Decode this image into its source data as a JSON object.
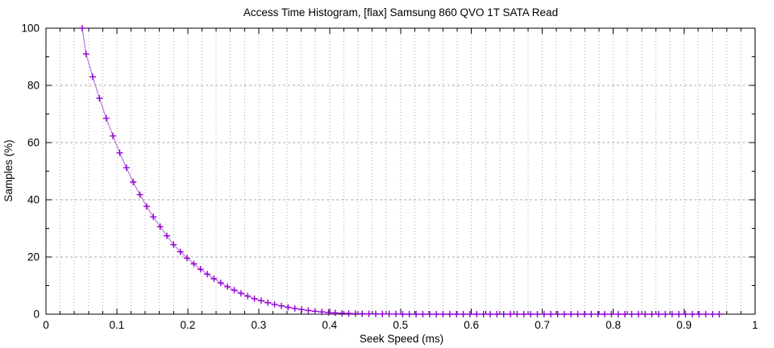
{
  "page": {
    "background": "#ffffff"
  },
  "chart_data": {
    "type": "line",
    "title": "Access Time Histogram, [flax] Samsung 860 QVO 1T SATA Read",
    "xlabel": "Seek Speed (ms)",
    "ylabel": "Samples (%)",
    "xlim": [
      0,
      1
    ],
    "ylim": [
      0,
      100
    ],
    "x_major_ticks": [
      0,
      0.1,
      0.2,
      0.3,
      0.4,
      0.5,
      0.6,
      0.7,
      0.8,
      0.9,
      1
    ],
    "x_major_labels": [
      "0",
      "0.1",
      "0.2",
      "0.3",
      "0.4",
      "0.5",
      "0.6",
      "0.7",
      "0.8",
      "0.9",
      "1"
    ],
    "x_minor_step": 0.02,
    "y_major_ticks": [
      0,
      20,
      40,
      60,
      80,
      100
    ],
    "y_major_labels": [
      "0",
      "20",
      "40",
      "60",
      "80",
      "100"
    ],
    "y_minor_step": 10,
    "grid_vertical_step": 0.02,
    "grid_horizontal_at": [
      20,
      40,
      60,
      80
    ],
    "legend_position": "none",
    "marker_style": "plus",
    "colors": {
      "line": "#b878dd",
      "marker": "#9400d3",
      "grid": "#ababab",
      "axis": "#000000",
      "text": "#000000"
    },
    "series": [
      {
        "points": [
          [
            0.051,
            100.0
          ],
          [
            0.0565,
            91.0
          ],
          [
            0.066,
            83.0
          ],
          [
            0.0755,
            75.5
          ],
          [
            0.085,
            68.5
          ],
          [
            0.0945,
            62.3
          ],
          [
            0.104,
            56.4
          ],
          [
            0.1135,
            51.2
          ],
          [
            0.123,
            46.2
          ],
          [
            0.1325,
            41.8
          ],
          [
            0.142,
            37.7
          ],
          [
            0.1515,
            34.0
          ],
          [
            0.161,
            30.6
          ],
          [
            0.1705,
            27.4
          ],
          [
            0.18,
            24.3
          ],
          [
            0.1895,
            21.8
          ],
          [
            0.199,
            19.6
          ],
          [
            0.2085,
            17.6
          ],
          [
            0.218,
            15.7
          ],
          [
            0.2275,
            14.0
          ],
          [
            0.237,
            12.4
          ],
          [
            0.2465,
            10.9
          ],
          [
            0.256,
            9.6
          ],
          [
            0.2655,
            8.4
          ],
          [
            0.275,
            7.3
          ],
          [
            0.2845,
            6.3
          ],
          [
            0.294,
            5.4
          ],
          [
            0.3035,
            4.7
          ],
          [
            0.313,
            4.0
          ],
          [
            0.3225,
            3.4
          ],
          [
            0.332,
            2.9
          ],
          [
            0.3415,
            2.4
          ],
          [
            0.351,
            2.0
          ],
          [
            0.3605,
            1.6
          ],
          [
            0.37,
            1.3
          ],
          [
            0.3795,
            1.0
          ],
          [
            0.389,
            0.8
          ],
          [
            0.3985,
            0.6
          ],
          [
            0.408,
            0.45
          ],
          [
            0.4175,
            0.3
          ],
          [
            0.427,
            0.25
          ],
          [
            0.4365,
            0.2
          ],
          [
            0.446,
            0.15
          ],
          [
            0.4555,
            0.1
          ],
          [
            0.465,
            0.1
          ],
          [
            0.4745,
            0.05
          ],
          [
            0.484,
            0.05
          ],
          [
            0.4935,
            0.05
          ],
          [
            0.503,
            0
          ],
          [
            0.5125,
            0
          ],
          [
            0.522,
            0
          ],
          [
            0.5315,
            0
          ],
          [
            0.541,
            0
          ],
          [
            0.5505,
            0
          ],
          [
            0.56,
            0
          ],
          [
            0.5695,
            0
          ],
          [
            0.579,
            0
          ],
          [
            0.5885,
            0
          ],
          [
            0.598,
            0
          ],
          [
            0.6075,
            0
          ],
          [
            0.617,
            0
          ],
          [
            0.6265,
            0
          ],
          [
            0.636,
            0
          ],
          [
            0.6455,
            0
          ],
          [
            0.655,
            0
          ],
          [
            0.6645,
            0
          ],
          [
            0.674,
            0
          ],
          [
            0.6835,
            0
          ],
          [
            0.693,
            0
          ],
          [
            0.7025,
            0
          ],
          [
            0.712,
            0
          ],
          [
            0.7215,
            0
          ],
          [
            0.731,
            0
          ],
          [
            0.7405,
            0
          ],
          [
            0.75,
            0
          ],
          [
            0.7595,
            0
          ],
          [
            0.769,
            0
          ],
          [
            0.7785,
            0
          ],
          [
            0.788,
            0
          ],
          [
            0.7975,
            0
          ],
          [
            0.807,
            0
          ],
          [
            0.8165,
            0
          ],
          [
            0.826,
            0
          ],
          [
            0.8355,
            0
          ],
          [
            0.845,
            0
          ],
          [
            0.8545,
            0
          ],
          [
            0.864,
            0
          ],
          [
            0.8735,
            0
          ],
          [
            0.883,
            0
          ],
          [
            0.8925,
            0
          ],
          [
            0.902,
            0
          ],
          [
            0.9115,
            0
          ],
          [
            0.921,
            0
          ],
          [
            0.9305,
            0
          ],
          [
            0.94,
            0
          ],
          [
            0.9495,
            0
          ]
        ]
      }
    ]
  }
}
